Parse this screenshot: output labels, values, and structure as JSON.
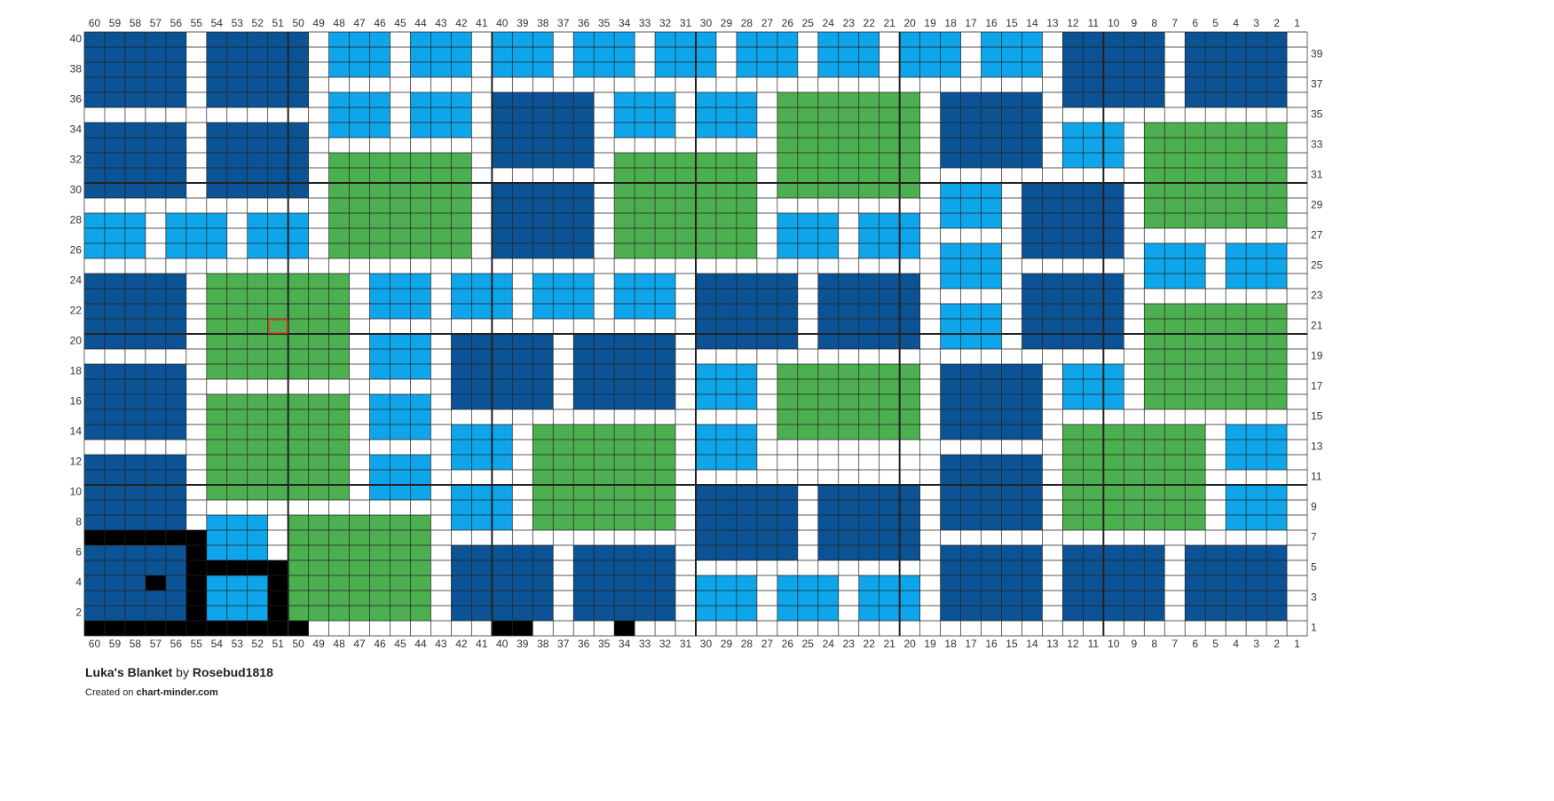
{
  "grid": {
    "columns": [
      60,
      59,
      58,
      57,
      56,
      55,
      54,
      53,
      52,
      51,
      50,
      49,
      48,
      47,
      46,
      45,
      44,
      43,
      42,
      41,
      40,
      39,
      38,
      37,
      36,
      35,
      34,
      33,
      32,
      31,
      30,
      29,
      28,
      27,
      26,
      25,
      24,
      23,
      22,
      21,
      20,
      19,
      18,
      17,
      16,
      15,
      14,
      13,
      12,
      11,
      10,
      9,
      8,
      7,
      6,
      5,
      4,
      3,
      2,
      1
    ],
    "rows_left": [
      40,
      38,
      36,
      34,
      32,
      30,
      28,
      26,
      24,
      22,
      20,
      18,
      16,
      14,
      12,
      10,
      8,
      6,
      4,
      2
    ],
    "rows_right": [
      39,
      37,
      35,
      33,
      31,
      29,
      27,
      25,
      23,
      21,
      19,
      17,
      15,
      13,
      11,
      9,
      7,
      5,
      3,
      1
    ],
    "palette": {
      "D": "#0b5394",
      "L": "#0ea5ea",
      "G": "#4caf50",
      "K": "#000000"
    },
    "highlight": {
      "col": 51,
      "row": 21,
      "color": "#e03c1f"
    },
    "blocks": [
      {
        "c": "D",
        "cols": [
          60,
          56
        ],
        "rows": [
          40,
          36
        ]
      },
      {
        "c": "D",
        "cols": [
          54,
          50
        ],
        "rows": [
          40,
          36
        ]
      },
      {
        "c": "D",
        "cols": [
          60,
          56
        ],
        "rows": [
          34,
          30
        ]
      },
      {
        "c": "D",
        "cols": [
          54,
          50
        ],
        "rows": [
          34,
          30
        ]
      },
      {
        "c": "L",
        "cols": [
          60,
          58
        ],
        "rows": [
          28,
          26
        ]
      },
      {
        "c": "L",
        "cols": [
          56,
          54
        ],
        "rows": [
          28,
          26
        ]
      },
      {
        "c": "L",
        "cols": [
          52,
          50
        ],
        "rows": [
          28,
          26
        ]
      },
      {
        "c": "D",
        "cols": [
          60,
          56
        ],
        "rows": [
          24,
          20
        ]
      },
      {
        "c": "D",
        "cols": [
          60,
          56
        ],
        "rows": [
          18,
          14
        ]
      },
      {
        "c": "D",
        "cols": [
          60,
          56
        ],
        "rows": [
          12,
          8
        ]
      },
      {
        "c": "K",
        "cols": [
          60,
          55
        ],
        "rows": [
          7,
          7
        ]
      },
      {
        "c": "D",
        "cols": [
          60,
          56
        ],
        "rows": [
          6,
          2
        ]
      },
      {
        "c": "K",
        "cols": [
          57,
          57
        ],
        "rows": [
          4,
          4
        ]
      },
      {
        "c": "K",
        "cols": [
          55,
          55
        ],
        "rows": [
          6,
          1
        ]
      },
      {
        "c": "K",
        "cols": [
          60,
          50
        ],
        "rows": [
          1,
          1
        ]
      },
      {
        "c": "K",
        "cols": [
          55,
          51
        ],
        "rows": [
          5,
          5
        ]
      },
      {
        "c": "K",
        "cols": [
          51,
          51
        ],
        "rows": [
          4,
          2
        ]
      },
      {
        "c": "L",
        "cols": [
          54,
          52
        ],
        "rows": [
          8,
          6
        ]
      },
      {
        "c": "L",
        "cols": [
          54,
          52
        ],
        "rows": [
          4,
          2
        ]
      },
      {
        "c": "G",
        "cols": [
          54,
          48
        ],
        "rows": [
          24,
          18
        ]
      },
      {
        "c": "G",
        "cols": [
          54,
          48
        ],
        "rows": [
          16,
          10
        ]
      },
      {
        "c": "G",
        "cols": [
          50,
          44
        ],
        "rows": [
          8,
          2
        ]
      },
      {
        "c": "L",
        "cols": [
          48,
          46
        ],
        "rows": [
          40,
          38
        ]
      },
      {
        "c": "L",
        "cols": [
          48,
          46
        ],
        "rows": [
          36,
          34
        ]
      },
      {
        "c": "L",
        "cols": [
          44,
          42
        ],
        "rows": [
          40,
          38
        ]
      },
      {
        "c": "L",
        "cols": [
          44,
          42
        ],
        "rows": [
          36,
          34
        ]
      },
      {
        "c": "G",
        "cols": [
          48,
          42
        ],
        "rows": [
          32,
          26
        ]
      },
      {
        "c": "L",
        "cols": [
          46,
          44
        ],
        "rows": [
          24,
          22
        ]
      },
      {
        "c": "L",
        "cols": [
          46,
          44
        ],
        "rows": [
          20,
          18
        ]
      },
      {
        "c": "L",
        "cols": [
          46,
          44
        ],
        "rows": [
          16,
          14
        ]
      },
      {
        "c": "L",
        "cols": [
          46,
          44
        ],
        "rows": [
          12,
          10
        ]
      },
      {
        "c": "L",
        "cols": [
          40,
          38
        ],
        "rows": [
          40,
          38
        ]
      },
      {
        "c": "L",
        "cols": [
          36,
          34
        ],
        "rows": [
          40,
          38
        ]
      },
      {
        "c": "L",
        "cols": [
          32,
          30
        ],
        "rows": [
          40,
          38
        ]
      },
      {
        "c": "L",
        "cols": [
          28,
          26
        ],
        "rows": [
          40,
          38
        ]
      },
      {
        "c": "L",
        "cols": [
          24,
          22
        ],
        "rows": [
          40,
          38
        ]
      },
      {
        "c": "L",
        "cols": [
          20,
          18
        ],
        "rows": [
          40,
          38
        ]
      },
      {
        "c": "L",
        "cols": [
          16,
          14
        ],
        "rows": [
          40,
          38
        ]
      },
      {
        "c": "D",
        "cols": [
          12,
          8
        ],
        "rows": [
          40,
          36
        ]
      },
      {
        "c": "D",
        "cols": [
          6,
          2
        ],
        "rows": [
          40,
          36
        ]
      },
      {
        "c": "D",
        "cols": [
          40,
          36
        ],
        "rows": [
          36,
          32
        ]
      },
      {
        "c": "D",
        "cols": [
          40,
          36
        ],
        "rows": [
          30,
          26
        ]
      },
      {
        "c": "L",
        "cols": [
          34,
          32
        ],
        "rows": [
          36,
          34
        ]
      },
      {
        "c": "L",
        "cols": [
          30,
          28
        ],
        "rows": [
          36,
          34
        ]
      },
      {
        "c": "G",
        "cols": [
          26,
          20
        ],
        "rows": [
          36,
          30
        ]
      },
      {
        "c": "D",
        "cols": [
          18,
          14
        ],
        "rows": [
          36,
          32
        ]
      },
      {
        "c": "L",
        "cols": [
          12,
          10
        ],
        "rows": [
          34,
          32
        ]
      },
      {
        "c": "G",
        "cols": [
          8,
          2
        ],
        "rows": [
          34,
          28
        ]
      },
      {
        "c": "G",
        "cols": [
          34,
          28
        ],
        "rows": [
          32,
          26
        ]
      },
      {
        "c": "L",
        "cols": [
          18,
          16
        ],
        "rows": [
          30,
          28
        ]
      },
      {
        "c": "D",
        "cols": [
          14,
          10
        ],
        "rows": [
          30,
          26
        ]
      },
      {
        "c": "L",
        "cols": [
          26,
          24
        ],
        "rows": [
          28,
          26
        ]
      },
      {
        "c": "L",
        "cols": [
          22,
          20
        ],
        "rows": [
          28,
          26
        ]
      },
      {
        "c": "L",
        "cols": [
          18,
          16
        ],
        "rows": [
          26,
          24
        ]
      },
      {
        "c": "L",
        "cols": [
          18,
          16
        ],
        "rows": [
          22,
          20
        ]
      },
      {
        "c": "L",
        "cols": [
          8,
          6
        ],
        "rows": [
          26,
          24
        ]
      },
      {
        "c": "L",
        "cols": [
          4,
          2
        ],
        "rows": [
          26,
          24
        ]
      },
      {
        "c": "L",
        "cols": [
          42,
          40
        ],
        "rows": [
          24,
          22
        ]
      },
      {
        "c": "L",
        "cols": [
          38,
          36
        ],
        "rows": [
          24,
          22
        ]
      },
      {
        "c": "L",
        "cols": [
          34,
          32
        ],
        "rows": [
          24,
          22
        ]
      },
      {
        "c": "D",
        "cols": [
          30,
          26
        ],
        "rows": [
          24,
          20
        ]
      },
      {
        "c": "D",
        "cols": [
          24,
          20
        ],
        "rows": [
          24,
          20
        ]
      },
      {
        "c": "D",
        "cols": [
          14,
          10
        ],
        "rows": [
          24,
          20
        ]
      },
      {
        "c": "G",
        "cols": [
          8,
          2
        ],
        "rows": [
          22,
          16
        ]
      },
      {
        "c": "D",
        "cols": [
          42,
          38
        ],
        "rows": [
          20,
          16
        ]
      },
      {
        "c": "D",
        "cols": [
          36,
          32
        ],
        "rows": [
          20,
          16
        ]
      },
      {
        "c": "L",
        "cols": [
          30,
          28
        ],
        "rows": [
          18,
          16
        ]
      },
      {
        "c": "G",
        "cols": [
          26,
          20
        ],
        "rows": [
          18,
          14
        ]
      },
      {
        "c": "D",
        "cols": [
          18,
          14
        ],
        "rows": [
          18,
          14
        ]
      },
      {
        "c": "L",
        "cols": [
          12,
          10
        ],
        "rows": [
          18,
          16
        ]
      },
      {
        "c": "L",
        "cols": [
          42,
          40
        ],
        "rows": [
          14,
          12
        ]
      },
      {
        "c": "G",
        "cols": [
          38,
          32
        ],
        "rows": [
          14,
          8
        ]
      },
      {
        "c": "L",
        "cols": [
          30,
          28
        ],
        "rows": [
          14,
          12
        ]
      },
      {
        "c": "D",
        "cols": [
          18,
          14
        ],
        "rows": [
          12,
          8
        ]
      },
      {
        "c": "G",
        "cols": [
          12,
          6
        ],
        "rows": [
          14,
          8
        ]
      },
      {
        "c": "L",
        "cols": [
          4,
          2
        ],
        "rows": [
          14,
          12
        ]
      },
      {
        "c": "L",
        "cols": [
          42,
          40
        ],
        "rows": [
          10,
          8
        ]
      },
      {
        "c": "D",
        "cols": [
          30,
          26
        ],
        "rows": [
          10,
          6
        ]
      },
      {
        "c": "D",
        "cols": [
          24,
          20
        ],
        "rows": [
          10,
          6
        ]
      },
      {
        "c": "L",
        "cols": [
          4,
          2
        ],
        "rows": [
          10,
          8
        ]
      },
      {
        "c": "D",
        "cols": [
          42,
          38
        ],
        "rows": [
          6,
          2
        ]
      },
      {
        "c": "D",
        "cols": [
          36,
          32
        ],
        "rows": [
          6,
          2
        ]
      },
      {
        "c": "L",
        "cols": [
          30,
          28
        ],
        "rows": [
          4,
          2
        ]
      },
      {
        "c": "L",
        "cols": [
          26,
          24
        ],
        "rows": [
          4,
          2
        ]
      },
      {
        "c": "L",
        "cols": [
          22,
          20
        ],
        "rows": [
          4,
          2
        ]
      },
      {
        "c": "D",
        "cols": [
          18,
          14
        ],
        "rows": [
          6,
          2
        ]
      },
      {
        "c": "D",
        "cols": [
          12,
          8
        ],
        "rows": [
          6,
          2
        ]
      },
      {
        "c": "D",
        "cols": [
          6,
          2
        ],
        "rows": [
          6,
          2
        ]
      },
      {
        "c": "K",
        "cols": [
          40,
          39
        ],
        "rows": [
          1,
          1
        ]
      },
      {
        "c": "K",
        "cols": [
          34,
          34
        ],
        "rows": [
          1,
          1
        ]
      }
    ]
  },
  "footer": {
    "title": "Luka's Blanket",
    "by": "by",
    "author": "Rosebud1818",
    "created": "Created on",
    "site": "chart-minder.com"
  }
}
